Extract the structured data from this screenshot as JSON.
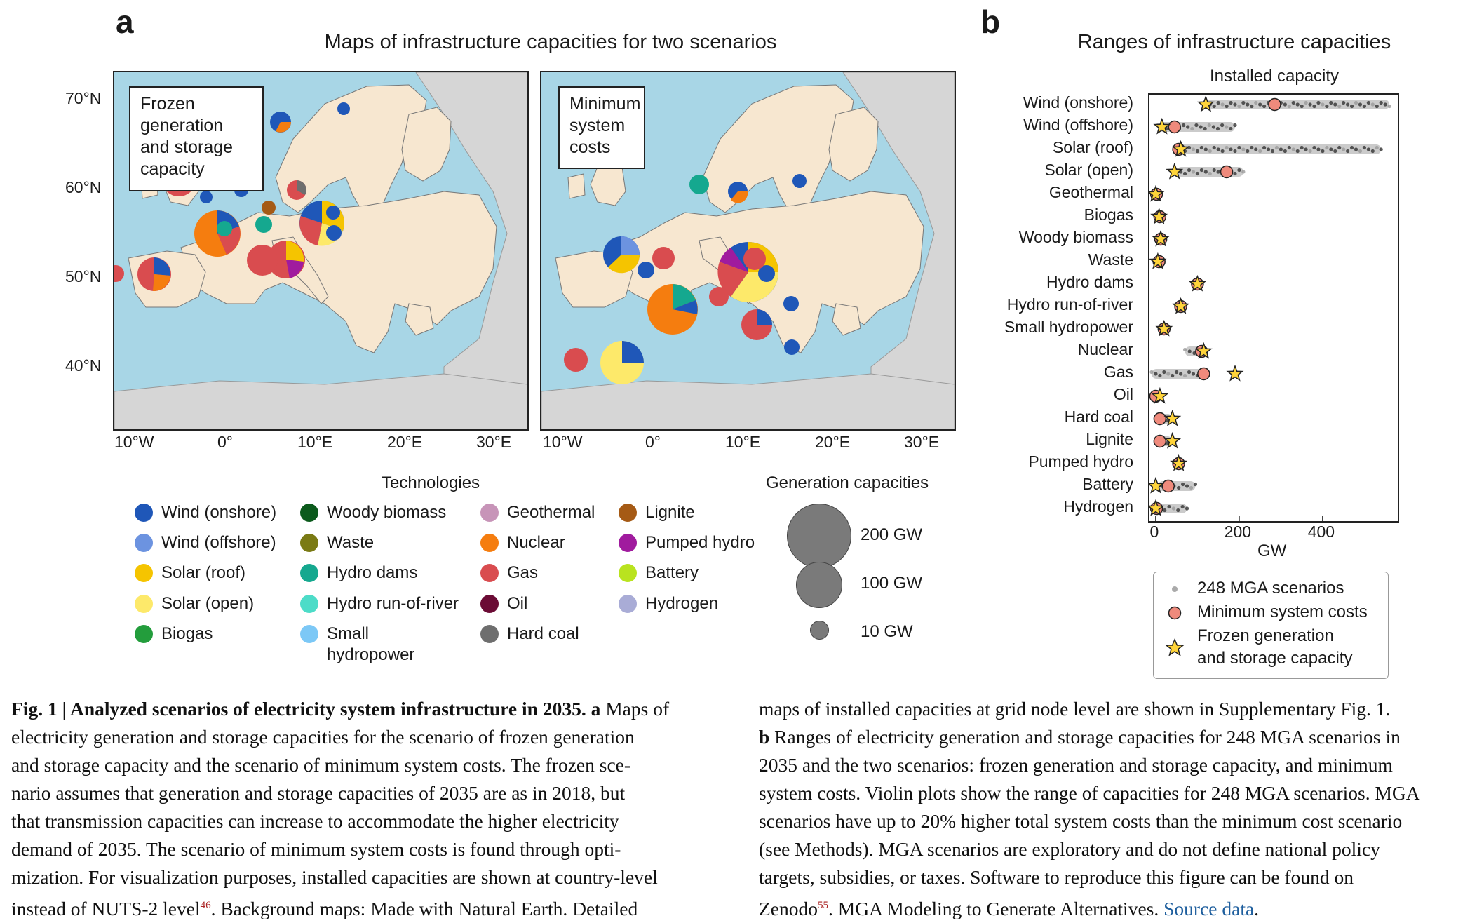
{
  "panel_a": {
    "letter": "a",
    "title": "Maps of infrastructure capacities for two scenarios",
    "lat_labels": [
      "70°N",
      "60°N",
      "50°N",
      "40°N"
    ],
    "lon_labels": [
      "10°W",
      "0°",
      "10°E",
      "20°E",
      "30°E"
    ],
    "scenario_left": [
      "Frozen",
      "generation",
      "and storage",
      "capacity"
    ],
    "scenario_right": [
      "Minimum",
      "system",
      "costs"
    ],
    "technologies_title": "Technologies",
    "capacities_title": "Generation capacities",
    "capacity_labels": [
      "200 GW",
      "100 GW",
      "10 GW"
    ],
    "technologies": [
      {
        "name": "Wind (onshore)",
        "color": "#1f57b8"
      },
      {
        "name": "Wind (offshore)",
        "color": "#6c93e0"
      },
      {
        "name": "Solar (roof)",
        "color": "#f5c400"
      },
      {
        "name": "Solar (open)",
        "color": "#fde96a"
      },
      {
        "name": "Biogas",
        "color": "#239d3c"
      },
      {
        "name": "Woody biomass",
        "color": "#0b5a1c"
      },
      {
        "name": "Waste",
        "color": "#7a7a14"
      },
      {
        "name": "Hydro dams",
        "color": "#15a88f"
      },
      {
        "name": "Hydro run-of-river",
        "color": "#4ddcc8"
      },
      {
        "name": "Small",
        "name2": "hydropower",
        "color": "#7cc8f6"
      },
      {
        "name": "Geothermal",
        "color": "#c794b8"
      },
      {
        "name": "Nuclear",
        "color": "#f57d0f"
      },
      {
        "name": "Gas",
        "color": "#d94c4f"
      },
      {
        "name": "Oil",
        "color": "#6b0b35"
      },
      {
        "name": "Hard coal",
        "color": "#6e6e6e"
      },
      {
        "name": "Lignite",
        "color": "#a55a15"
      },
      {
        "name": "Pumped hydro",
        "color": "#a01b9e"
      },
      {
        "name": "Battery",
        "color": "#b9e31f"
      },
      {
        "name": "Hydrogen",
        "color": "#a9acd6"
      }
    ]
  },
  "panel_b": {
    "letter": "b",
    "title": "Ranges of infrastructure capacities",
    "subtitle": "Installed capacity",
    "xlabel": "GW",
    "xticks": [
      "0",
      "200",
      "400"
    ],
    "legend": [
      "248 MGA scenarios",
      "Minimum system costs",
      "Frozen generation",
      "and storage capacity"
    ]
  },
  "chart_data": {
    "type": "scatter",
    "title": "Ranges of infrastructure capacities",
    "subtitle": "Installed capacity",
    "xlabel": "GW",
    "xlim": [
      -15,
      580
    ],
    "categories": [
      "Wind (onshore)",
      "Wind (offshore)",
      "Solar (roof)",
      "Solar (open)",
      "Geothermal",
      "Biogas",
      "Woody biomass",
      "Waste",
      "Hydro dams",
      "Hydro run-of-river",
      "Small hydropower",
      "Nuclear",
      "Gas",
      "Oil",
      "Hard coal",
      "Lignite",
      "Pumped hydro",
      "Battery",
      "Hydrogen"
    ],
    "series": [
      {
        "name": "248 MGA scenarios",
        "ranges": [
          [
            120,
            560
          ],
          [
            5,
            190
          ],
          [
            50,
            540
          ],
          [
            50,
            210
          ],
          [
            0,
            5
          ],
          [
            5,
            15
          ],
          [
            5,
            20
          ],
          [
            5,
            15
          ],
          [
            95,
            105
          ],
          [
            55,
            65
          ],
          [
            15,
            25
          ],
          [
            70,
            115
          ],
          [
            -10,
            120
          ],
          [
            -5,
            10
          ],
          [
            5,
            40
          ],
          [
            5,
            40
          ],
          [
            50,
            60
          ],
          [
            5,
            95
          ],
          [
            0,
            75
          ]
        ]
      },
      {
        "name": "Minimum system costs",
        "values": [
          285,
          45,
          55,
          170,
          2,
          10,
          12,
          8,
          100,
          60,
          20,
          110,
          115,
          0,
          10,
          10,
          55,
          30,
          2
        ]
      },
      {
        "name": "Frozen generation and storage capacity",
        "values": [
          120,
          15,
          60,
          45,
          0,
          8,
          12,
          5,
          100,
          60,
          20,
          115,
          190,
          10,
          40,
          40,
          55,
          0,
          0
        ]
      }
    ]
  },
  "caption": {
    "left": [
      {
        "bold": "Fig. 1 | Analyzed scenarios of electricity system infrastructure in 2035. a",
        "text": " Maps of"
      },
      {
        "text": "electricity generation and storage capacities for the scenario of frozen generation"
      },
      {
        "text": "and storage capacity and the scenario of minimum system costs. The frozen sce-"
      },
      {
        "text": "nario assumes that generation and storage capacities of 2035 are as in 2018, but"
      },
      {
        "text": "that transmission capacities can increase to accommodate the higher electricity"
      },
      {
        "text": "demand of 2035. The scenario of minimum system costs is found through opti-"
      },
      {
        "text": "mization. For visualization purposes, installed capacities are shown at country-level"
      },
      {
        "text": "instead of NUTS-2 level",
        "sup": "46",
        "text2": ". Background maps: Made with Natural Earth. Detailed"
      }
    ],
    "right": [
      {
        "text": "maps of installed capacities at grid node level are shown in Supplementary Fig. 1."
      },
      {
        "bold": "b",
        "text": " Ranges of electricity generation and storage capacities for 248 MGA scenarios in"
      },
      {
        "text": "2035 and the two scenarios: frozen generation and storage capacity, and minimum"
      },
      {
        "text": "system costs. Violin plots show the range of capacities for 248 MGA scenarios. MGA"
      },
      {
        "text": "scenarios have up to 20% higher total system costs than the minimum cost scenario"
      },
      {
        "text": "(see Methods). MGA scenarios are exploratory and do not define national policy"
      },
      {
        "text": "targets, subsidies, or taxes. Software to reproduce this figure can be found on"
      },
      {
        "text": "Zenodo",
        "sup": "55",
        "text2": ". MGA Modeling to Generate Alternatives. ",
        "link": "Source data",
        "text3": "."
      }
    ]
  }
}
